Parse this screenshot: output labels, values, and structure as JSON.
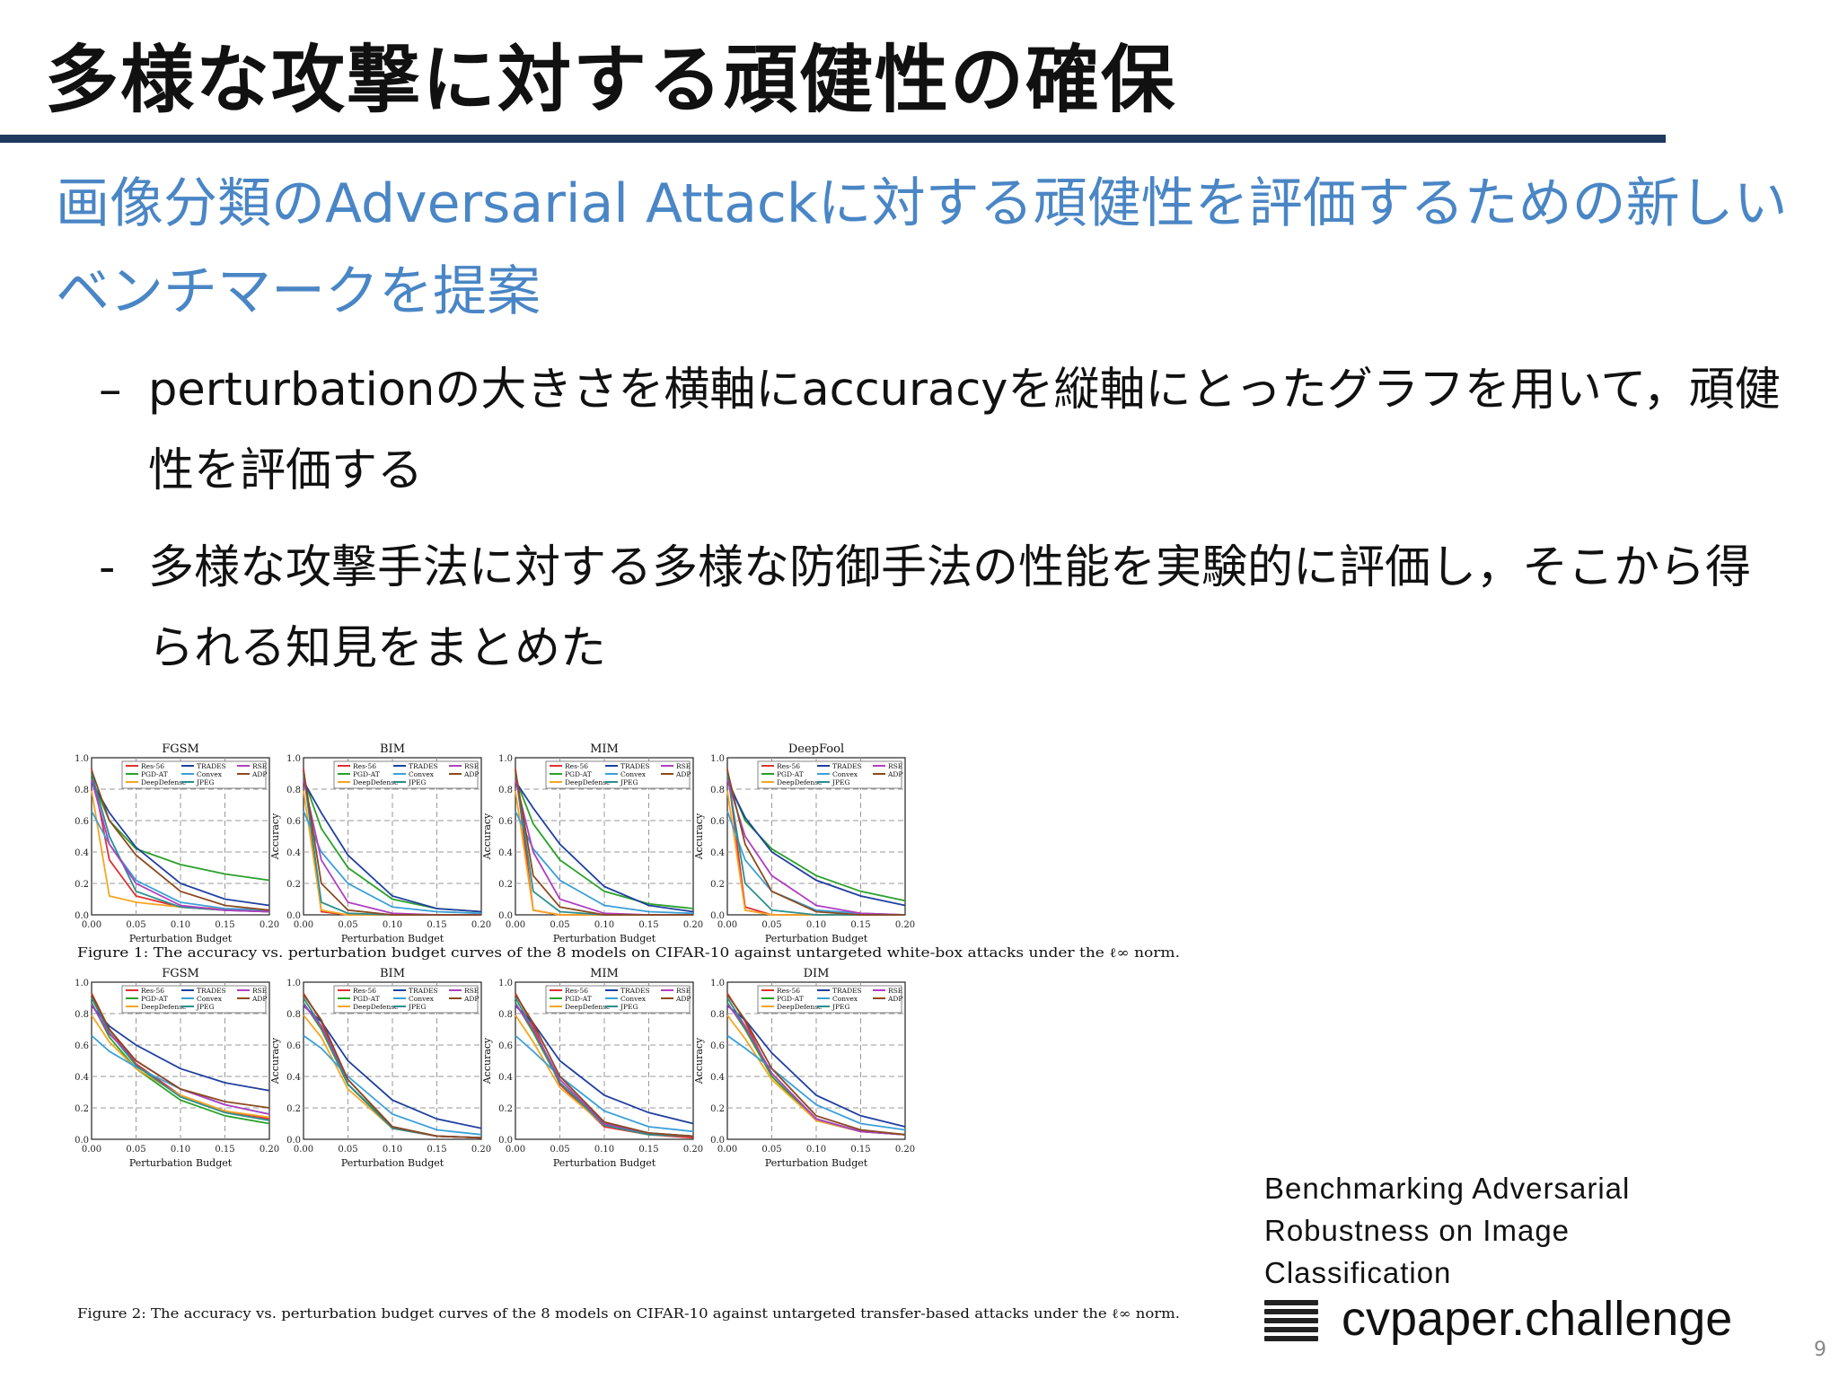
{
  "slide": {
    "title": "多様な攻撃に対する頑健性の確保",
    "lead": "画像分類のAdversarial Attackに対する頑健性を評価するための新しいベンチマークを提案",
    "bullets": [
      {
        "dash": "–",
        "text": "perturbationの大きさを横軸にaccuracyを縦軸にとったグラフを用いて，頑健性を評価する"
      },
      {
        "dash": "-",
        "text": "多様な攻撃手法に対する多様な防御手法の性能を実験的に評価し，そこから得られる知見をまとめた"
      }
    ],
    "citation": [
      "Benchmarking Adversarial",
      "Robustness on Image",
      "Classification"
    ],
    "brand": "cvpaper.challenge",
    "page_number": "9"
  },
  "figure_captions": {
    "fig1": "Figure 1: The accuracy vs. perturbation budget curves of the 8 models on CIFAR-10 against untargeted white-box attacks under the ℓ∞ norm.",
    "fig2": "Figure 2: The accuracy vs. perturbation budget curves of the 8 models on CIFAR-10 against untargeted transfer-based attacks under the ℓ∞ norm."
  },
  "chart_data": [
    {
      "type": "line",
      "title": "FGSM",
      "figure": 1,
      "xlabel": "Perturbation Budget",
      "ylabel": "Accuracy",
      "xlim": [
        0,
        0.2
      ],
      "ylim": [
        0,
        1.0
      ],
      "xticks": [
        "0.00",
        "0.05",
        "0.10",
        "0.15",
        "0.20"
      ],
      "yticks": [
        "0.0",
        "0.2",
        "0.4",
        "0.6",
        "0.8",
        "1.0"
      ],
      "grid": true,
      "legend": "top",
      "x": [
        0,
        0.02,
        0.05,
        0.1,
        0.15,
        0.2
      ],
      "series": [
        {
          "name": "Res-56",
          "color": "#e03030",
          "values": [
            0.93,
            0.35,
            0.12,
            0.05,
            0.03,
            0.02
          ]
        },
        {
          "name": "PGD-AT",
          "color": "#2aa02a",
          "values": [
            0.87,
            0.6,
            0.42,
            0.32,
            0.26,
            0.22
          ]
        },
        {
          "name": "DeepDefense",
          "color": "#f5a623",
          "values": [
            0.79,
            0.12,
            0.08,
            0.05,
            0.04,
            0.03
          ]
        },
        {
          "name": "TRADES",
          "color": "#1f3fa0",
          "values": [
            0.85,
            0.65,
            0.43,
            0.2,
            0.1,
            0.06
          ]
        },
        {
          "name": "Convex",
          "color": "#3ba0d8",
          "values": [
            0.66,
            0.45,
            0.22,
            0.08,
            0.04,
            0.03
          ]
        },
        {
          "name": "JPEG",
          "color": "#2a8f8f",
          "values": [
            0.9,
            0.5,
            0.15,
            0.05,
            0.03,
            0.02
          ]
        },
        {
          "name": "RSE",
          "color": "#b040c0",
          "values": [
            0.86,
            0.45,
            0.2,
            0.06,
            0.03,
            0.02
          ]
        },
        {
          "name": "ADP",
          "color": "#8b4a1f",
          "values": [
            0.92,
            0.6,
            0.38,
            0.15,
            0.06,
            0.03
          ]
        }
      ]
    },
    {
      "type": "line",
      "title": "BIM",
      "figure": 1,
      "xlabel": "Perturbation Budget",
      "ylabel": "Accuracy",
      "xlim": [
        0,
        0.2
      ],
      "ylim": [
        0,
        1.0
      ],
      "xticks": [
        "0.00",
        "0.05",
        "0.10",
        "0.15",
        "0.20"
      ],
      "yticks": [
        "0.0",
        "0.2",
        "0.4",
        "0.6",
        "0.8",
        "1.0"
      ],
      "grid": true,
      "legend": "top",
      "x": [
        0,
        0.02,
        0.05,
        0.1,
        0.15,
        0.2
      ],
      "series": [
        {
          "name": "Res-56",
          "color": "#e03030",
          "values": [
            0.93,
            0.02,
            0.0,
            0.0,
            0.0,
            0.0
          ]
        },
        {
          "name": "PGD-AT",
          "color": "#2aa02a",
          "values": [
            0.87,
            0.55,
            0.3,
            0.1,
            0.04,
            0.02
          ]
        },
        {
          "name": "DeepDefense",
          "color": "#f5a623",
          "values": [
            0.79,
            0.03,
            0.0,
            0.0,
            0.0,
            0.0
          ]
        },
        {
          "name": "TRADES",
          "color": "#1f3fa0",
          "values": [
            0.85,
            0.65,
            0.38,
            0.12,
            0.04,
            0.02
          ]
        },
        {
          "name": "Convex",
          "color": "#3ba0d8",
          "values": [
            0.66,
            0.4,
            0.2,
            0.05,
            0.02,
            0.01
          ]
        },
        {
          "name": "JPEG",
          "color": "#2a8f8f",
          "values": [
            0.9,
            0.08,
            0.01,
            0.0,
            0.0,
            0.0
          ]
        },
        {
          "name": "RSE",
          "color": "#b040c0",
          "values": [
            0.86,
            0.35,
            0.08,
            0.01,
            0.0,
            0.0
          ]
        },
        {
          "name": "ADP",
          "color": "#8b4a1f",
          "values": [
            0.92,
            0.2,
            0.03,
            0.0,
            0.0,
            0.0
          ]
        }
      ]
    },
    {
      "type": "line",
      "title": "MIM",
      "figure": 1,
      "xlabel": "Perturbation Budget",
      "ylabel": "Accuracy",
      "xlim": [
        0,
        0.2
      ],
      "ylim": [
        0,
        1.0
      ],
      "xticks": [
        "0.00",
        "0.05",
        "0.10",
        "0.15",
        "0.20"
      ],
      "yticks": [
        "0.0",
        "0.2",
        "0.4",
        "0.6",
        "0.8",
        "1.0"
      ],
      "grid": true,
      "legend": "top",
      "x": [
        0,
        0.02,
        0.05,
        0.1,
        0.15,
        0.2
      ],
      "series": [
        {
          "name": "Res-56",
          "color": "#e03030",
          "values": [
            0.93,
            0.03,
            0.0,
            0.0,
            0.0,
            0.0
          ]
        },
        {
          "name": "PGD-AT",
          "color": "#2aa02a",
          "values": [
            0.87,
            0.58,
            0.35,
            0.15,
            0.07,
            0.04
          ]
        },
        {
          "name": "DeepDefense",
          "color": "#f5a623",
          "values": [
            0.79,
            0.03,
            0.0,
            0.0,
            0.0,
            0.0
          ]
        },
        {
          "name": "TRADES",
          "color": "#1f3fa0",
          "values": [
            0.85,
            0.68,
            0.45,
            0.18,
            0.06,
            0.02
          ]
        },
        {
          "name": "Convex",
          "color": "#3ba0d8",
          "values": [
            0.66,
            0.42,
            0.22,
            0.06,
            0.02,
            0.01
          ]
        },
        {
          "name": "JPEG",
          "color": "#2a8f8f",
          "values": [
            0.9,
            0.15,
            0.02,
            0.0,
            0.0,
            0.0
          ]
        },
        {
          "name": "RSE",
          "color": "#b040c0",
          "values": [
            0.86,
            0.4,
            0.1,
            0.01,
            0.0,
            0.0
          ]
        },
        {
          "name": "ADP",
          "color": "#8b4a1f",
          "values": [
            0.92,
            0.25,
            0.05,
            0.0,
            0.0,
            0.0
          ]
        }
      ]
    },
    {
      "type": "line",
      "title": "DeepFool",
      "figure": 1,
      "xlabel": "Perturbation Budget",
      "ylabel": "Accuracy",
      "xlim": [
        0,
        0.2
      ],
      "ylim": [
        0,
        1.0
      ],
      "xticks": [
        "0.00",
        "0.05",
        "0.10",
        "0.15",
        "0.20"
      ],
      "yticks": [
        "0.0",
        "0.2",
        "0.4",
        "0.6",
        "0.8",
        "1.0"
      ],
      "grid": true,
      "legend": "top",
      "x": [
        0,
        0.02,
        0.05,
        0.1,
        0.15,
        0.2
      ],
      "series": [
        {
          "name": "Res-56",
          "color": "#e03030",
          "values": [
            0.93,
            0.05,
            0.0,
            0.0,
            0.0,
            0.0
          ]
        },
        {
          "name": "PGD-AT",
          "color": "#2aa02a",
          "values": [
            0.87,
            0.6,
            0.42,
            0.25,
            0.15,
            0.09
          ]
        },
        {
          "name": "DeepDefense",
          "color": "#f5a623",
          "values": [
            0.79,
            0.03,
            0.0,
            0.0,
            0.0,
            0.0
          ]
        },
        {
          "name": "TRADES",
          "color": "#1f3fa0",
          "values": [
            0.85,
            0.62,
            0.4,
            0.22,
            0.12,
            0.06
          ]
        },
        {
          "name": "Convex",
          "color": "#3ba0d8",
          "values": [
            0.66,
            0.35,
            0.15,
            0.03,
            0.01,
            0.0
          ]
        },
        {
          "name": "JPEG",
          "color": "#2a8f8f",
          "values": [
            0.9,
            0.2,
            0.03,
            0.0,
            0.0,
            0.0
          ]
        },
        {
          "name": "RSE",
          "color": "#b040c0",
          "values": [
            0.86,
            0.5,
            0.25,
            0.06,
            0.01,
            0.0
          ]
        },
        {
          "name": "ADP",
          "color": "#8b4a1f",
          "values": [
            0.92,
            0.45,
            0.15,
            0.02,
            0.0,
            0.0
          ]
        }
      ]
    },
    {
      "type": "line",
      "title": "FGSM",
      "figure": 2,
      "xlabel": "Perturbation Budget",
      "ylabel": "Accuracy",
      "xlim": [
        0,
        0.2
      ],
      "ylim": [
        0,
        1.0
      ],
      "xticks": [
        "0.00",
        "0.05",
        "0.10",
        "0.15",
        "0.20"
      ],
      "yticks": [
        "0.0",
        "0.2",
        "0.4",
        "0.6",
        "0.8",
        "1.0"
      ],
      "grid": true,
      "legend": "top",
      "x": [
        0,
        0.02,
        0.05,
        0.1,
        0.15,
        0.2
      ],
      "series": [
        {
          "name": "Res-56",
          "color": "#e03030",
          "values": [
            0.93,
            0.7,
            0.48,
            0.28,
            0.18,
            0.13
          ]
        },
        {
          "name": "PGD-AT",
          "color": "#2aa02a",
          "values": [
            0.87,
            0.65,
            0.45,
            0.25,
            0.15,
            0.1
          ]
        },
        {
          "name": "DeepDefense",
          "color": "#f5a623",
          "values": [
            0.79,
            0.62,
            0.45,
            0.28,
            0.18,
            0.14
          ]
        },
        {
          "name": "TRADES",
          "color": "#1f3fa0",
          "values": [
            0.85,
            0.72,
            0.6,
            0.45,
            0.36,
            0.31
          ]
        },
        {
          "name": "Convex",
          "color": "#3ba0d8",
          "values": [
            0.66,
            0.56,
            0.46,
            0.32,
            0.22,
            0.16
          ]
        },
        {
          "name": "JPEG",
          "color": "#2a8f8f",
          "values": [
            0.9,
            0.68,
            0.47,
            0.27,
            0.17,
            0.12
          ]
        },
        {
          "name": "RSE",
          "color": "#b040c0",
          "values": [
            0.86,
            0.67,
            0.5,
            0.32,
            0.22,
            0.16
          ]
        },
        {
          "name": "ADP",
          "color": "#8b4a1f",
          "values": [
            0.92,
            0.7,
            0.5,
            0.32,
            0.24,
            0.2
          ]
        }
      ]
    },
    {
      "type": "line",
      "title": "BIM",
      "figure": 2,
      "xlabel": "Perturbation Budget",
      "ylabel": "Accuracy",
      "xlim": [
        0,
        0.2
      ],
      "ylim": [
        0,
        1.0
      ],
      "xticks": [
        "0.00",
        "0.05",
        "0.10",
        "0.15",
        "0.20"
      ],
      "yticks": [
        "0.0",
        "0.2",
        "0.4",
        "0.6",
        "0.8",
        "1.0"
      ],
      "grid": true,
      "legend": "top",
      "x": [
        0,
        0.02,
        0.05,
        0.1,
        0.15,
        0.2
      ],
      "series": [
        {
          "name": "Res-56",
          "color": "#e03030",
          "values": [
            0.93,
            0.75,
            0.35,
            0.07,
            0.02,
            0.01
          ]
        },
        {
          "name": "PGD-AT",
          "color": "#2aa02a",
          "values": [
            0.87,
            0.7,
            0.35,
            0.08,
            0.02,
            0.01
          ]
        },
        {
          "name": "DeepDefense",
          "color": "#f5a623",
          "values": [
            0.79,
            0.65,
            0.32,
            0.07,
            0.02,
            0.01
          ]
        },
        {
          "name": "TRADES",
          "color": "#1f3fa0",
          "values": [
            0.85,
            0.75,
            0.5,
            0.25,
            0.13,
            0.07
          ]
        },
        {
          "name": "Convex",
          "color": "#3ba0d8",
          "values": [
            0.66,
            0.58,
            0.4,
            0.16,
            0.06,
            0.03
          ]
        },
        {
          "name": "JPEG",
          "color": "#2a8f8f",
          "values": [
            0.9,
            0.72,
            0.35,
            0.07,
            0.02,
            0.01
          ]
        },
        {
          "name": "RSE",
          "color": "#b040c0",
          "values": [
            0.86,
            0.72,
            0.38,
            0.08,
            0.02,
            0.01
          ]
        },
        {
          "name": "ADP",
          "color": "#8b4a1f",
          "values": [
            0.92,
            0.76,
            0.38,
            0.08,
            0.02,
            0.01
          ]
        }
      ]
    },
    {
      "type": "line",
      "title": "MIM",
      "figure": 2,
      "xlabel": "Perturbation Budget",
      "ylabel": "Accuracy",
      "xlim": [
        0,
        0.2
      ],
      "ylim": [
        0,
        1.0
      ],
      "xticks": [
        "0.00",
        "0.05",
        "0.10",
        "0.15",
        "0.20"
      ],
      "yticks": [
        "0.0",
        "0.2",
        "0.4",
        "0.6",
        "0.8",
        "1.0"
      ],
      "grid": true,
      "legend": "top",
      "x": [
        0,
        0.02,
        0.05,
        0.1,
        0.15,
        0.2
      ],
      "series": [
        {
          "name": "Res-56",
          "color": "#e03030",
          "values": [
            0.93,
            0.72,
            0.35,
            0.08,
            0.03,
            0.01
          ]
        },
        {
          "name": "PGD-AT",
          "color": "#2aa02a",
          "values": [
            0.87,
            0.68,
            0.36,
            0.1,
            0.04,
            0.02
          ]
        },
        {
          "name": "DeepDefense",
          "color": "#f5a623",
          "values": [
            0.79,
            0.62,
            0.33,
            0.09,
            0.03,
            0.02
          ]
        },
        {
          "name": "TRADES",
          "color": "#1f3fa0",
          "values": [
            0.85,
            0.74,
            0.5,
            0.28,
            0.17,
            0.1
          ]
        },
        {
          "name": "Convex",
          "color": "#3ba0d8",
          "values": [
            0.66,
            0.56,
            0.4,
            0.18,
            0.08,
            0.05
          ]
        },
        {
          "name": "JPEG",
          "color": "#2a8f8f",
          "values": [
            0.9,
            0.7,
            0.36,
            0.09,
            0.03,
            0.02
          ]
        },
        {
          "name": "RSE",
          "color": "#b040c0",
          "values": [
            0.86,
            0.7,
            0.38,
            0.1,
            0.04,
            0.02
          ]
        },
        {
          "name": "ADP",
          "color": "#8b4a1f",
          "values": [
            0.92,
            0.74,
            0.4,
            0.11,
            0.04,
            0.02
          ]
        }
      ]
    },
    {
      "type": "line",
      "title": "DIM",
      "figure": 2,
      "xlabel": "Perturbation Budget",
      "ylabel": "Accuracy",
      "xlim": [
        0,
        0.2
      ],
      "ylim": [
        0,
        1.0
      ],
      "xticks": [
        "0.00",
        "0.05",
        "0.10",
        "0.15",
        "0.20"
      ],
      "yticks": [
        "0.0",
        "0.2",
        "0.4",
        "0.6",
        "0.8",
        "1.0"
      ],
      "grid": true,
      "legend": "top",
      "x": [
        0,
        0.02,
        0.05,
        0.1,
        0.15,
        0.2
      ],
      "series": [
        {
          "name": "Res-56",
          "color": "#e03030",
          "values": [
            0.93,
            0.75,
            0.4,
            0.12,
            0.05,
            0.03
          ]
        },
        {
          "name": "PGD-AT",
          "color": "#2aa02a",
          "values": [
            0.87,
            0.7,
            0.4,
            0.12,
            0.05,
            0.03
          ]
        },
        {
          "name": "DeepDefense",
          "color": "#f5a623",
          "values": [
            0.79,
            0.64,
            0.38,
            0.12,
            0.05,
            0.03
          ]
        },
        {
          "name": "TRADES",
          "color": "#1f3fa0",
          "values": [
            0.85,
            0.76,
            0.55,
            0.28,
            0.15,
            0.08
          ]
        },
        {
          "name": "Convex",
          "color": "#3ba0d8",
          "values": [
            0.66,
            0.58,
            0.45,
            0.22,
            0.1,
            0.06
          ]
        },
        {
          "name": "JPEG",
          "color": "#2a8f8f",
          "values": [
            0.9,
            0.72,
            0.42,
            0.13,
            0.05,
            0.03
          ]
        },
        {
          "name": "RSE",
          "color": "#b040c0",
          "values": [
            0.86,
            0.72,
            0.42,
            0.13,
            0.05,
            0.03
          ]
        },
        {
          "name": "ADP",
          "color": "#8b4a1f",
          "values": [
            0.92,
            0.76,
            0.45,
            0.15,
            0.06,
            0.03
          ]
        }
      ]
    }
  ]
}
